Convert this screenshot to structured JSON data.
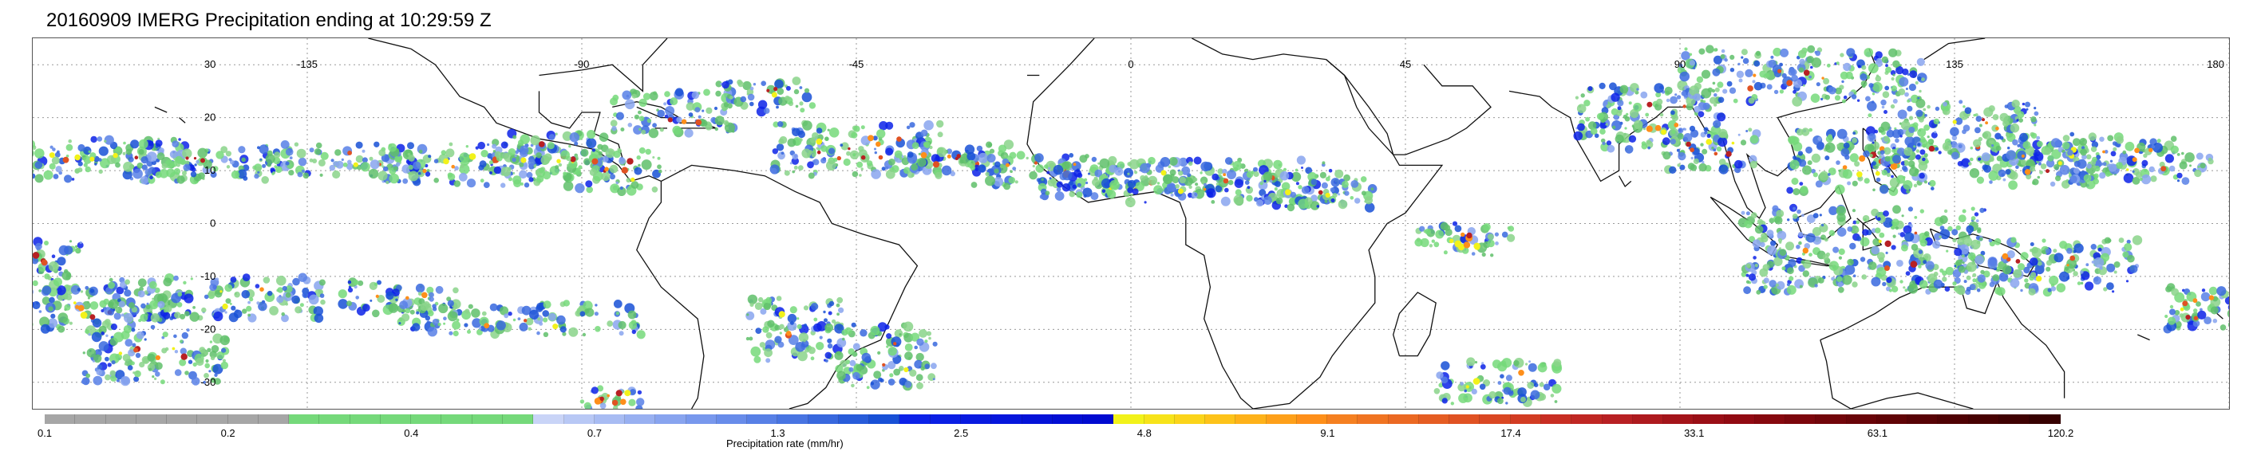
{
  "title": "20160909 IMERG Precipitation ending at 10:29:59 Z",
  "map": {
    "lat_labels": [
      "30",
      "20",
      "10",
      "0",
      "-10",
      "-20",
      "-30"
    ],
    "lon_labels": [
      "-135",
      "-90",
      "-45",
      "0",
      "45",
      "90",
      "135",
      "180"
    ],
    "lat_values": [
      30,
      20,
      10,
      0,
      -10,
      -20,
      -30
    ],
    "lon_values": [
      -135,
      -90,
      -45,
      0,
      45,
      90,
      135,
      180
    ],
    "lat_range": [
      -35,
      35
    ],
    "lon_range": [
      -180,
      180
    ],
    "grid": "dotted"
  },
  "colorbar": {
    "title": "Precipitation rate (mm/hr)",
    "tick_labels": [
      "0.1",
      "0.2",
      "0.4",
      "0.7",
      "1.3",
      "2.5",
      "4.8",
      "9.1",
      "17.4",
      "33.1",
      "63.1",
      "120.2"
    ],
    "colors": [
      "#a6a6a6",
      "#a6a6a6",
      "#a6a6a6",
      "#a6a6a6",
      "#a6a6a6",
      "#a6a6a6",
      "#a6a6a6",
      "#a6a6a6",
      "#75d97a",
      "#75d97a",
      "#75d97a",
      "#75d97a",
      "#75d97a",
      "#75d97a",
      "#75d97a",
      "#75d97a",
      "#c9d4f7",
      "#b8c8f5",
      "#a8bcf3",
      "#98b0f1",
      "#88a4ef",
      "#7898ed",
      "#688cea",
      "#5880e6",
      "#4874e2",
      "#3868de",
      "#285cda",
      "#1850d6",
      "#0c22e8",
      "#0a1ee4",
      "#081ae0",
      "#0616dc",
      "#0412d8",
      "#020ed4",
      "#000ad0",
      "#f2f21a",
      "#f7e31a",
      "#fbd41a",
      "#fdc31a",
      "#feb21a",
      "#fea01a",
      "#fe8f1a",
      "#f58021",
      "#f07422",
      "#eb6923",
      "#e55d23",
      "#e05223",
      "#da4723",
      "#d23c23",
      "#c82e23",
      "#c02723",
      "#b82023",
      "#ae1a1e",
      "#a4141a",
      "#9a0f16",
      "#910a12",
      "#86080e",
      "#7c060c",
      "#72050a",
      "#690408",
      "#600306",
      "#570205",
      "#4f0103",
      "#470102",
      "#3f0102",
      "#370101"
    ]
  }
}
